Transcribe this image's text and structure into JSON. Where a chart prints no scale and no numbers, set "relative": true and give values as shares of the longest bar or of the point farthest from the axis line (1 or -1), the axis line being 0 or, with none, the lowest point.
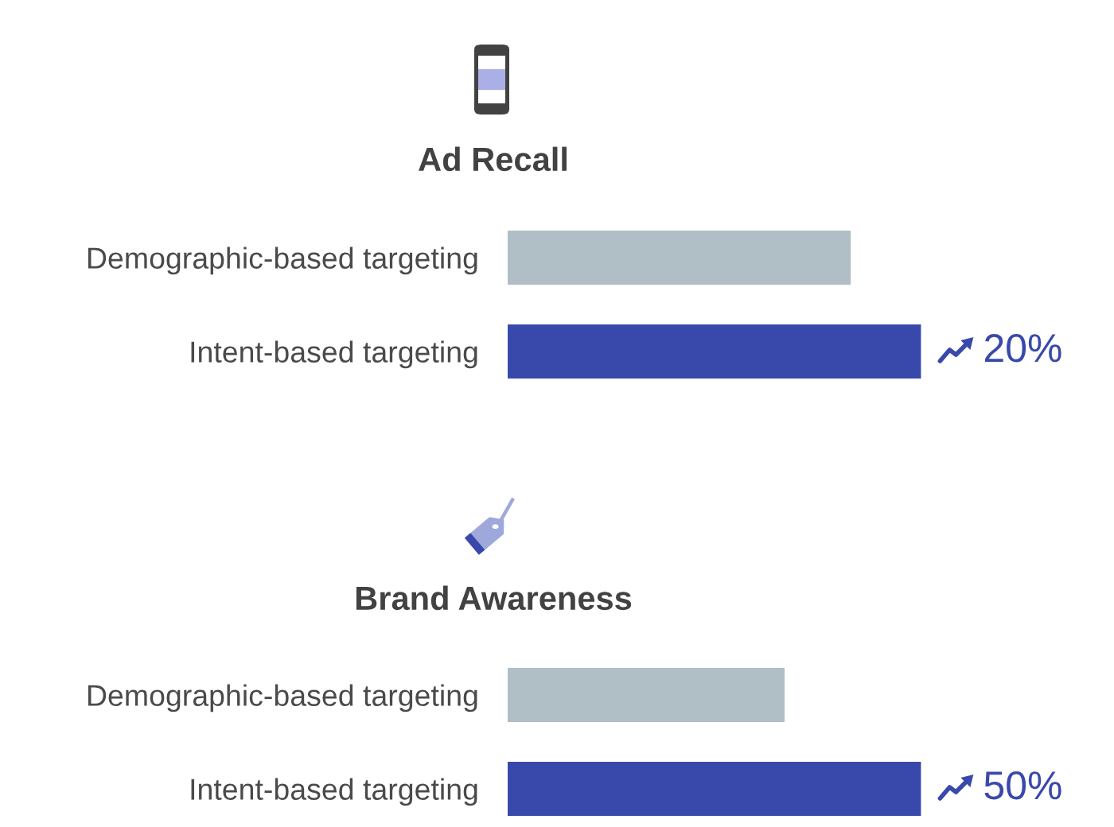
{
  "chart_data": [
    {
      "type": "bar",
      "orientation": "horizontal",
      "relative": true,
      "title": "Ad Recall",
      "categories": [
        "Demographic-based targeting",
        "Intent-based targeting"
      ],
      "values": [
        0.83,
        1
      ],
      "colors": [
        "#b0bec5",
        "#3949ab"
      ],
      "tick_labels": "y",
      "annotations": [
        {
          "text": "20%",
          "x": 1,
          "y": "Intent-based targeting"
        }
      ]
    },
    {
      "type": "bar",
      "orientation": "horizontal",
      "relative": true,
      "title": "Brand Awareness",
      "categories": [
        "Demographic-based targeting",
        "Intent-based targeting"
      ],
      "values": [
        0.67,
        1
      ],
      "colors": [
        "#b0bec5",
        "#3949ab"
      ],
      "tick_labels": "y",
      "annotations": [
        {
          "text": "50%",
          "x": 1,
          "y": "Intent-based targeting"
        }
      ]
    }
  ]
}
